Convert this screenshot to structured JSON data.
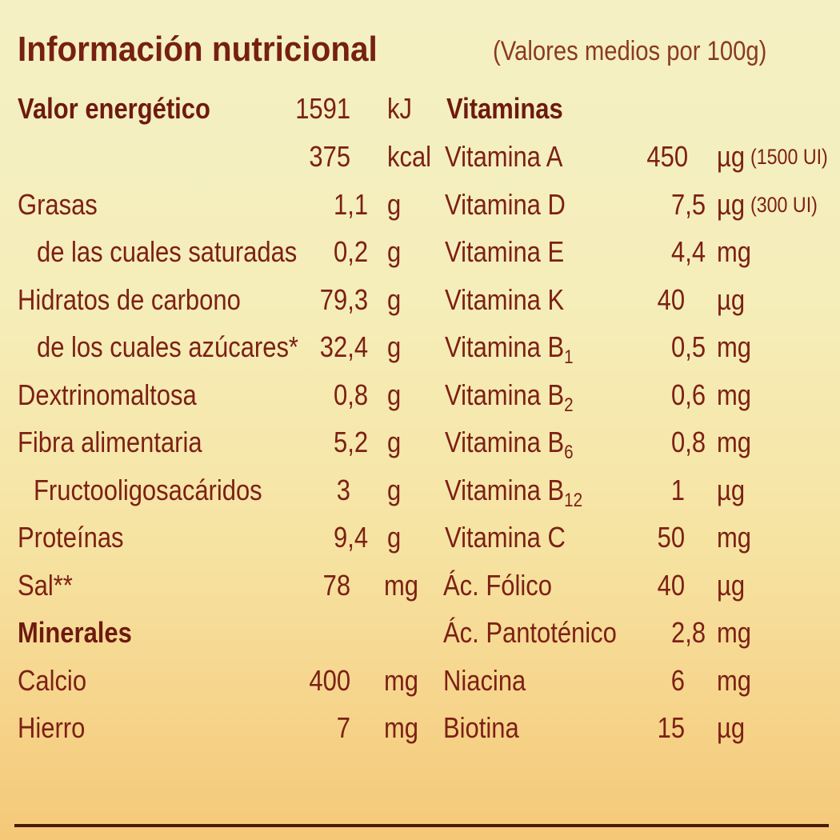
{
  "title": "Información nutricional",
  "subtitle": "(Valores medios por 100g)",
  "left": {
    "energy_label": "Valor energético",
    "energy_kj": "1591",
    "energy_kj_unit": "kJ",
    "energy_kcal": "375",
    "energy_kcal_unit": "kcal",
    "rows": [
      {
        "label": "Grasas",
        "value": "1,1",
        "unit": "g"
      },
      {
        "label": "de las cuales saturadas",
        "value": "0,2",
        "unit": "g"
      },
      {
        "label": "Hidratos de carbono",
        "value": "79,3",
        "unit": "g"
      },
      {
        "label": "de los cuales azúcares*",
        "value": "32,4",
        "unit": "g"
      },
      {
        "label": "Dextrinomaltosa",
        "value": "0,8",
        "unit": "g"
      },
      {
        "label": "Fibra alimentaria",
        "value": "5,2",
        "unit": "g"
      },
      {
        "label": "Fructooligosacáridos",
        "value": "3",
        "unit": "g"
      },
      {
        "label": "Proteínas",
        "value": "9,4",
        "unit": "g"
      },
      {
        "label": "Sal**",
        "value": "78",
        "unit": "mg"
      }
    ],
    "minerals_heading": "Minerales",
    "minerals": [
      {
        "label": "Calcio",
        "value": "400",
        "unit": "mg"
      },
      {
        "label": "Hierro",
        "value": "7",
        "unit": "mg"
      }
    ]
  },
  "right": {
    "vitamins_heading": "Vitaminas",
    "rows": [
      {
        "label": "Vitamina A",
        "value": "450",
        "unit": "µg",
        "note": "(1500 UI)"
      },
      {
        "label": "Vitamina D",
        "value": "7,5",
        "unit": "µg",
        "note": "(300 UI)"
      },
      {
        "label": "Vitamina E",
        "value": "4,4",
        "unit": "mg"
      },
      {
        "label": "Vitamina K",
        "value": "40",
        "unit": "µg"
      },
      {
        "label": "Vitamina B",
        "sub": "1",
        "value": "0,5",
        "unit": "mg"
      },
      {
        "label": "Vitamina B",
        "sub": "2",
        "value": "0,6",
        "unit": "mg"
      },
      {
        "label": "Vitamina B",
        "sub": "6",
        "value": "0,8",
        "unit": "mg"
      },
      {
        "label": "Vitamina B",
        "sub": "12",
        "value": "1",
        "unit": "µg"
      },
      {
        "label": "Vitamina C",
        "value": "50",
        "unit": "mg"
      },
      {
        "label": "Ác. Fólico",
        "value": "40",
        "unit": "µg"
      },
      {
        "label": "Ác. Pantoténico",
        "value": "2,8",
        "unit": "mg"
      },
      {
        "label": "Niacina",
        "value": "6",
        "unit": "mg"
      },
      {
        "label": "Biotina",
        "value": "15",
        "unit": "µg"
      }
    ]
  }
}
